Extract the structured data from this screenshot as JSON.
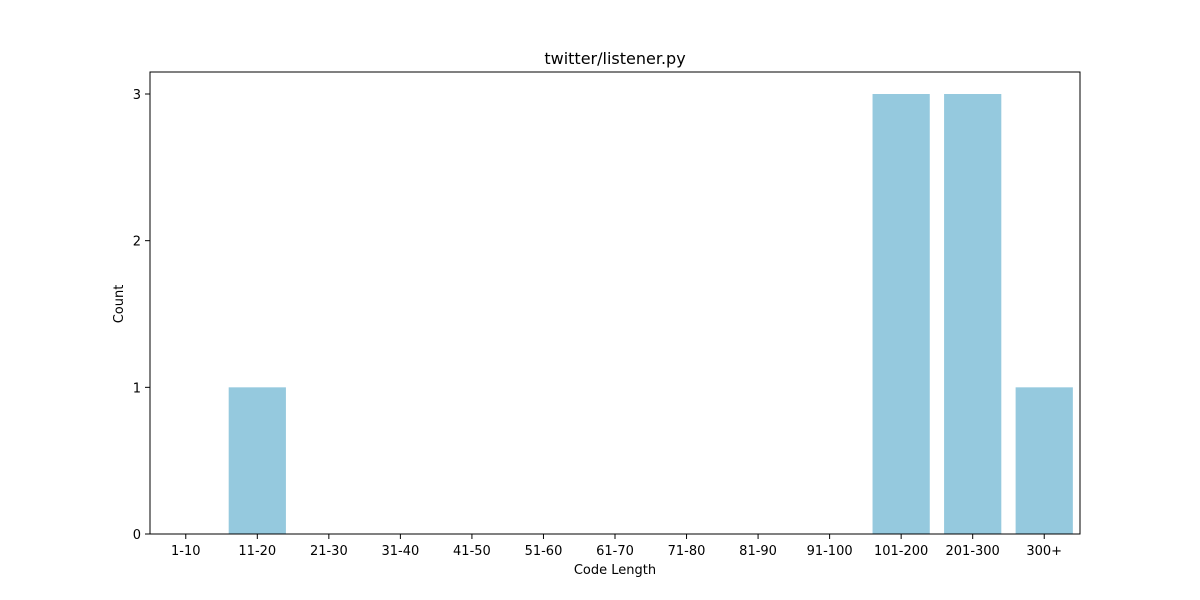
{
  "chart_data": {
    "type": "bar",
    "title": "twitter/listener.py",
    "xlabel": "Code Length",
    "ylabel": "Count",
    "categories": [
      "1-10",
      "11-20",
      "21-30",
      "31-40",
      "41-50",
      "51-60",
      "61-70",
      "71-80",
      "81-90",
      "91-100",
      "101-200",
      "201-300",
      "300+"
    ],
    "values": [
      0,
      1,
      0,
      0,
      0,
      0,
      0,
      0,
      0,
      0,
      3,
      3,
      1
    ],
    "ylim": [
      0,
      3.15
    ],
    "yticks": [
      0,
      1,
      2,
      3
    ],
    "grid": false,
    "legend": "none",
    "bar_color": "#95c9de"
  }
}
